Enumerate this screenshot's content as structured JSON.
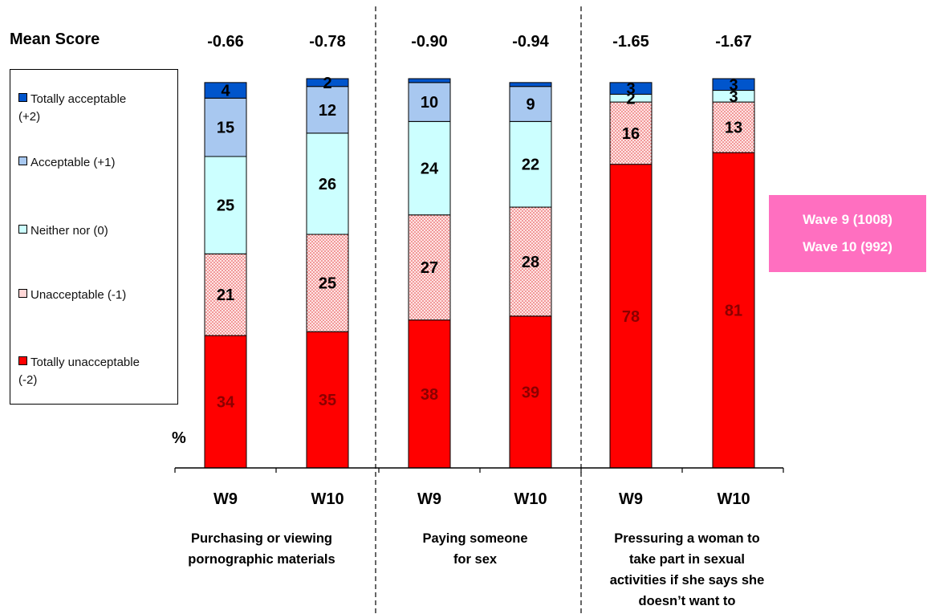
{
  "chart_data": {
    "type": "bar",
    "stacked": true,
    "y_unit_label": "%",
    "mean_score_label": "Mean Score",
    "ylim": [
      0,
      100
    ],
    "bars": [
      {
        "wave": "W9",
        "mean": "-0.66"
      },
      {
        "wave": "W10",
        "mean": "-0.78"
      },
      {
        "wave": "W9",
        "mean": "-0.90"
      },
      {
        "wave": "W10",
        "mean": "-0.94"
      },
      {
        "wave": "W9",
        "mean": "-1.65"
      },
      {
        "wave": "W10",
        "mean": "-1.67"
      }
    ],
    "groups": [
      {
        "label_lines": [
          "Purchasing or viewing",
          "pornographic materials"
        ]
      },
      {
        "label_lines": [
          "Paying someone",
          "for sex"
        ]
      },
      {
        "label_lines": [
          "Pressuring a woman to",
          "take part in sexual",
          "activities if she says she",
          "doesn’t want to"
        ]
      }
    ],
    "series": [
      {
        "name": "Totally unacceptable (-2)",
        "legend_lines": [
          "Totally unacceptable",
          "(-2)"
        ],
        "color": "#ff0000",
        "label_color": "#8b0000",
        "pattern": false,
        "values": [
          34,
          35,
          38,
          39,
          78,
          81
        ],
        "labels": [
          "34",
          "35",
          "38",
          "39",
          "78",
          "81"
        ]
      },
      {
        "name": "Unacceptable (-1)",
        "legend_lines": [
          "Unacceptable (-1)"
        ],
        "color": "#ffd6d6",
        "label_color": "#000000",
        "pattern": true,
        "values": [
          21,
          25,
          27,
          28,
          16,
          13
        ],
        "labels": [
          "21",
          "25",
          "27",
          "28",
          "16",
          "13"
        ]
      },
      {
        "name": "Neither nor (0)",
        "legend_lines": [
          "Neither nor (0)"
        ],
        "color": "#ccffff",
        "label_color": "#000000",
        "pattern": false,
        "values": [
          25,
          26,
          24,
          22,
          2,
          3
        ],
        "labels": [
          "25",
          "26",
          "24",
          "22",
          "2",
          "3"
        ]
      },
      {
        "name": "Acceptable (+1)",
        "legend_lines": [
          "Acceptable (+1)"
        ],
        "color": "#a8c8f0",
        "label_color": "#000000",
        "pattern": false,
        "values": [
          15,
          12,
          10,
          9,
          0,
          0
        ],
        "labels": [
          "15",
          "12",
          "10",
          "9",
          "",
          ""
        ]
      },
      {
        "name": "Totally acceptable (+2)",
        "legend_lines": [
          "Totally acceptable",
          "(+2)"
        ],
        "color": "#0055cc",
        "label_color": "#000000",
        "pattern": false,
        "values": [
          4,
          2,
          1,
          1,
          3,
          3
        ],
        "labels": [
          "4",
          "2",
          "",
          "",
          "3",
          "3"
        ]
      }
    ],
    "sample_box": [
      "Wave 9 (1008)",
      "Wave 10 (992)"
    ]
  }
}
